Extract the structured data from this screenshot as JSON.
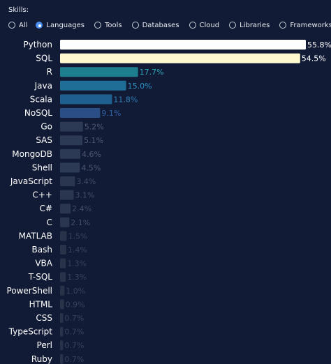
{
  "filter": {
    "label": "Skills:",
    "options": [
      "All",
      "Languages",
      "Tools",
      "Databases",
      "Cloud",
      "Libraries",
      "Frameworks"
    ],
    "selected": "Languages"
  },
  "chart_data": {
    "type": "bar",
    "orientation": "horizontal",
    "categories": [
      "Python",
      "SQL",
      "R",
      "Java",
      "Scala",
      "NoSQL",
      "Go",
      "SAS",
      "MongoDB",
      "Shell",
      "JavaScript",
      "C++",
      "C#",
      "C",
      "MATLAB",
      "Bash",
      "VBA",
      "T-SQL",
      "PowerShell",
      "HTML",
      "CSS",
      "TypeScript",
      "Perl",
      "Ruby"
    ],
    "values": [
      55.8,
      54.5,
      17.7,
      15.0,
      11.8,
      9.1,
      5.2,
      5.1,
      4.6,
      4.5,
      3.4,
      3.1,
      2.4,
      2.1,
      1.5,
      1.4,
      1.3,
      1.3,
      1.0,
      0.9,
      0.7,
      0.7,
      0.7,
      0.7
    ],
    "value_labels": [
      "55.8%",
      "54.5%",
      "17.7%",
      "15.0%",
      "11.8%",
      "9.1%",
      "5.2%",
      "5.1%",
      "4.6%",
      "4.5%",
      "3.4%",
      "3.1%",
      "2.4%",
      "2.1%",
      "1.5%",
      "1.4%",
      "1.3%",
      "1.3%",
      "1.0%",
      "0.9%",
      "0.7%",
      "0.7%",
      "0.7%",
      "0.7%"
    ],
    "unit": "%",
    "xlim": [
      0,
      55.8
    ],
    "colors": [
      "#ffffff",
      "#fff9d0",
      "#1d7f8d",
      "#1f6e97",
      "#1f5f8f",
      "#2a4f86",
      "#2d3a55",
      "#2d3a55",
      "#2d3a55",
      "#2d3a55",
      "#2a3550",
      "#2a3550",
      "#2a3550",
      "#2a3550",
      "#283249",
      "#283249",
      "#283249",
      "#283249",
      "#283249",
      "#283249",
      "#283249",
      "#283249",
      "#283249",
      "#283249"
    ],
    "label_colors": [
      "#ffffff",
      "#ffffff",
      "#2aa6b8",
      "#2c8fc4",
      "#2d7db8",
      "#2e62a8",
      "#4e5a74",
      "#4e5a74",
      "#4e5a74",
      "#4e5a74",
      "#414c66",
      "#414c66",
      "#414c66",
      "#414c66",
      "#394259",
      "#394259",
      "#394259",
      "#394259",
      "#394259",
      "#394259",
      "#394259",
      "#394259",
      "#394259",
      "#394259"
    ],
    "grid": false,
    "legend": "none"
  }
}
